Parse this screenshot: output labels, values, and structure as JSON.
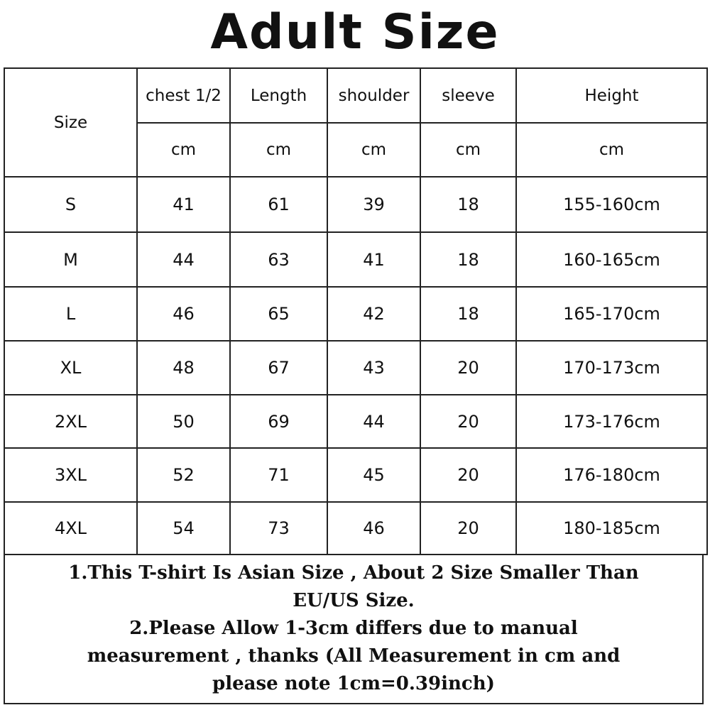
{
  "title": "Adult Size",
  "table": {
    "size_header": "Size",
    "columns": [
      {
        "label": "chest 1/2",
        "unit": "cm"
      },
      {
        "label": "Length",
        "unit": "cm"
      },
      {
        "label": "shoulder",
        "unit": "cm"
      },
      {
        "label": "sleeve",
        "unit": "cm"
      },
      {
        "label": "Height",
        "unit": "cm"
      }
    ],
    "rows": [
      [
        "S",
        "41",
        "61",
        "39",
        "18",
        "155-160cm"
      ],
      [
        "M",
        "44",
        "63",
        "41",
        "18",
        "160-165cm"
      ],
      [
        "L",
        "46",
        "65",
        "42",
        "18",
        "165-170cm"
      ],
      [
        "XL",
        "48",
        "67",
        "43",
        "20",
        "170-173cm"
      ],
      [
        "2XL",
        "50",
        "69",
        "44",
        "20",
        "173-176cm"
      ],
      [
        "3XL",
        "52",
        "71",
        "45",
        "20",
        "176-180cm"
      ],
      [
        "4XL",
        "54",
        "73",
        "46",
        "20",
        "180-185cm"
      ]
    ]
  },
  "notes": [
    "1.This T-shirt Is Asian Size , About 2 Size Smaller Than",
    "EU/US Size.",
    "2.Please Allow 1-3cm differs due to manual",
    "measurement , thanks (All Measurement in cm and",
    "please note 1cm=0.39inch)"
  ]
}
